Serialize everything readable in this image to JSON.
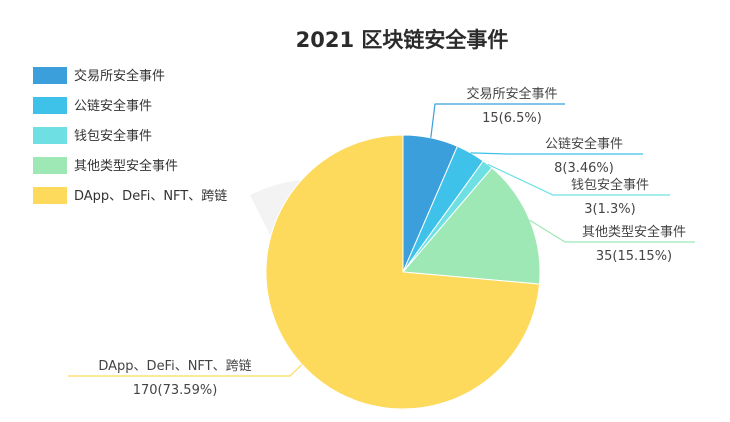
{
  "chart_data": {
    "type": "pie",
    "title": "2021 区块链安全事件",
    "slices": [
      {
        "name": "交易所安全事件",
        "value": 15,
        "percent": "6.5%",
        "label": "15(6.5%)",
        "color": "#3a9fdb"
      },
      {
        "name": "公链安全事件",
        "value": 8,
        "percent": "3.46%",
        "label": "8(3.46%)",
        "color": "#3ec2ea"
      },
      {
        "name": "钱包安全事件",
        "value": 3,
        "percent": "1.3%",
        "label": "3(1.3%)",
        "color": "#6ee0e4"
      },
      {
        "name": "其他类型安全事件",
        "value": 35,
        "percent": "15.15%",
        "label": "35(15.15%)",
        "color": "#9ee8b6"
      },
      {
        "name": "DApp、DeFi、NFT、跨链",
        "value": 170,
        "percent": "73.59%",
        "label": "170(73.59%)",
        "color": "#fdd95c"
      }
    ],
    "legend_position": "top-left"
  }
}
